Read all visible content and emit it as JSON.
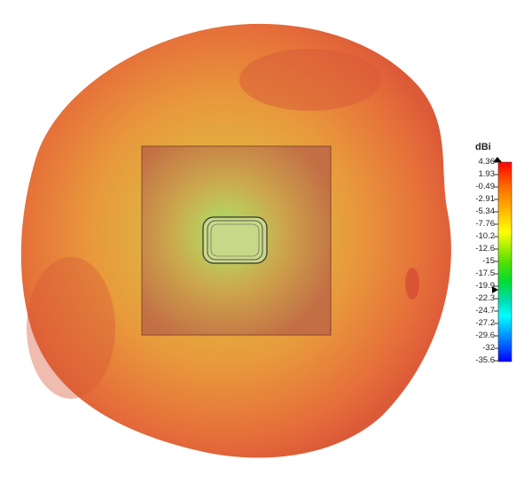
{
  "chart_data": {
    "type": "heatmap",
    "colorbar": {
      "unit": "dBi",
      "range": [
        -35.6,
        4.36
      ],
      "ticks": [
        "4.36",
        "1.93",
        "-0.49",
        "-2.91",
        "-5.34",
        "-7.76",
        "-10.2",
        "-12.6",
        "-15",
        "-17.5",
        "-19.9",
        "-22.3",
        "-24.7",
        "-27.2",
        "-29.6",
        "-32",
        "-35.6"
      ],
      "colors": [
        "#ff0000",
        "#ff6a00",
        "#ffaa00",
        "#ffff00",
        "#66ee00",
        "#00dd00",
        "#00ddaa",
        "#00ffff",
        "#00aaff",
        "#0055ff",
        "#0000ff"
      ],
      "max_marker": 4.36,
      "marker": -21.1
    }
  }
}
